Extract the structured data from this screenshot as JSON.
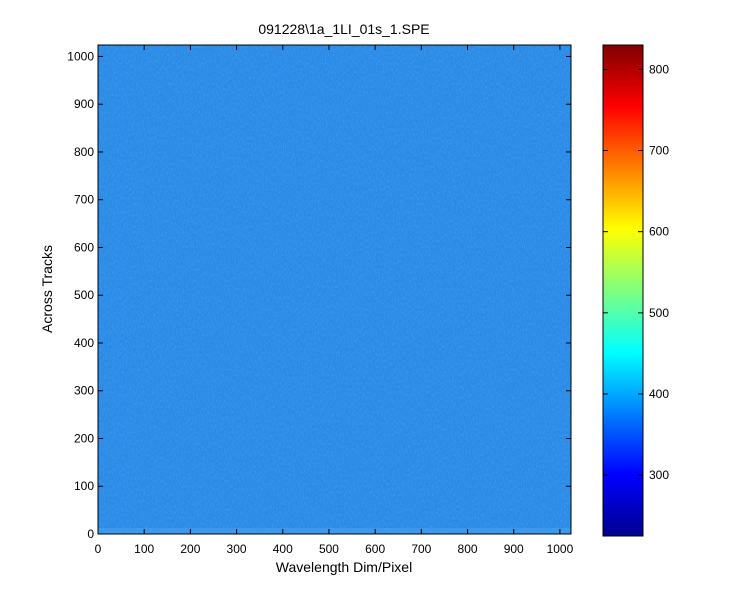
{
  "chart_data": {
    "type": "heatmap",
    "title": "091228\\1a_1LI_01s_1.SPE",
    "xlabel": "Wavelength Dim/Pixel",
    "ylabel": "Across Tracks",
    "xlim": [
      0,
      1024
    ],
    "ylim": [
      0,
      1024
    ],
    "x_ticks": [
      0,
      100,
      200,
      300,
      400,
      500,
      600,
      700,
      800,
      900,
      1000
    ],
    "y_ticks": [
      0,
      100,
      200,
      300,
      400,
      500,
      600,
      700,
      800,
      900,
      1000
    ],
    "grid": false,
    "colormap": "jet",
    "colorbar": {
      "position": "right",
      "range": [
        225,
        830
      ],
      "ticks": [
        300,
        400,
        500,
        600,
        700,
        800
      ]
    },
    "field": {
      "mean_value": 395,
      "variation": "fine noisy horizontal streaks, nearly uniform",
      "color": "#2a8ae6"
    }
  }
}
